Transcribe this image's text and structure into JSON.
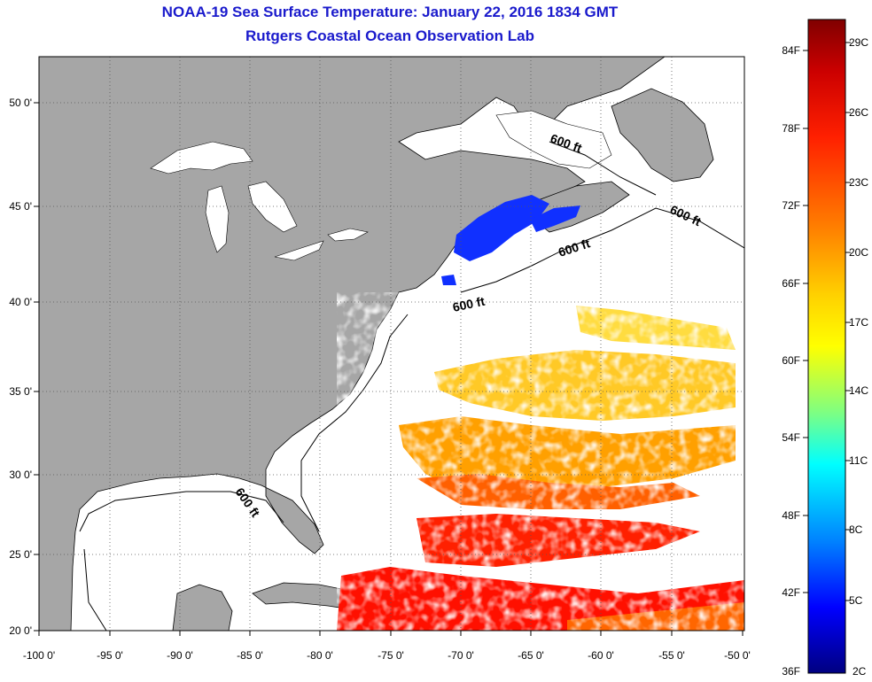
{
  "title": {
    "line1": "NOAA-19 Sea Surface Temperature:  January 22, 2016 1834 GMT",
    "line2": "Rutgers Coastal Ocean Observation Lab"
  },
  "colors": {
    "title": "#1a1acc",
    "land": "#a6a6a6",
    "ocean_nodata": "#ffffff",
    "gridline": "#555555",
    "colorbar_stops": [
      "#800000",
      "#cc0000",
      "#ff2000",
      "#ff8000",
      "#ffd000",
      "#ffff00",
      "#80ff80",
      "#00ffff",
      "#0080ff",
      "#0000ff",
      "#000080"
    ]
  },
  "map": {
    "lon_range": [
      -100,
      -50
    ],
    "lat_range": [
      20,
      52
    ],
    "lon_ticks": [
      "-100 0'",
      "-95 0'",
      "-90 0'",
      "-85 0'",
      "-80 0'",
      "-75 0'",
      "-70 0'",
      "-65 0'",
      "-60 0'",
      "-55 0'",
      "-50 0'"
    ],
    "lat_ticks": [
      "20 0'",
      "25 0'",
      "30 0'",
      "35 0'",
      "40 0'",
      "45 0'",
      "50 0'"
    ],
    "contour_labels": [
      "600 ft",
      "600 ft",
      "600 ft",
      "600 ft",
      "600 ft"
    ]
  },
  "colorbar": {
    "fahrenheit_labels": [
      "84F",
      "78F",
      "72F",
      "66F",
      "60F",
      "54F",
      "48F",
      "42F",
      "36F"
    ],
    "celsius_labels": [
      "29C",
      "26C",
      "23C",
      "20C",
      "17C",
      "14C",
      "11C",
      "8C",
      "5C",
      "2C"
    ]
  }
}
